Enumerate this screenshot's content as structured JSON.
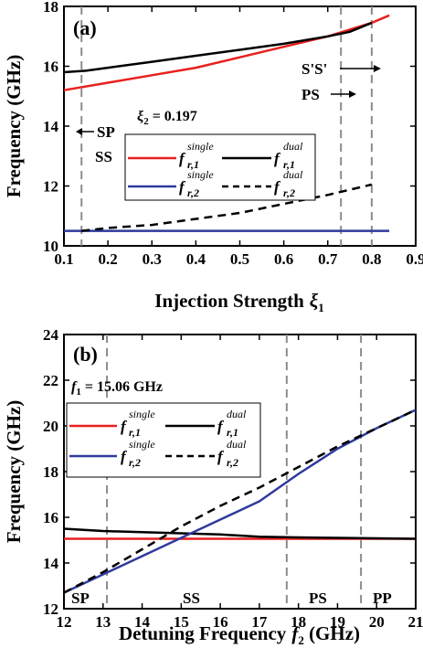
{
  "chart_data": [
    {
      "type": "line",
      "panel_label": "(a)",
      "xlabel": "Injection Strength",
      "xlabel_symbol": "ξ",
      "xlabel_sub": "1",
      "ylabel": "Frequency (GHz)",
      "xlim": [
        0.1,
        0.9
      ],
      "ylim": [
        10,
        18
      ],
      "xticks": [
        "0.1",
        "0.2",
        "0.3",
        "0.4",
        "0.5",
        "0.6",
        "0.7",
        "0.8",
        "0.9"
      ],
      "yticks": [
        "10",
        "12",
        "14",
        "16",
        "18"
      ],
      "vlines": [
        0.14,
        0.73,
        0.8
      ],
      "legend_title_symbol": "ξ",
      "legend_title_sub": "2",
      "legend_title_value": " = 0.197",
      "series": [
        {
          "name": "f_r,1^single",
          "color": "#e8201e",
          "dash": false,
          "x": [
            0.1,
            0.2,
            0.3,
            0.4,
            0.5,
            0.6,
            0.7,
            0.8,
            0.84
          ],
          "y": [
            15.2,
            15.45,
            15.7,
            15.95,
            16.3,
            16.65,
            17.0,
            17.45,
            17.7
          ]
        },
        {
          "name": "f_r,1^dual",
          "color": "#000000",
          "dash": false,
          "x": [
            0.1,
            0.15,
            0.2,
            0.3,
            0.4,
            0.5,
            0.6,
            0.7,
            0.75,
            0.8
          ],
          "y": [
            15.8,
            15.85,
            15.95,
            16.15,
            16.35,
            16.55,
            16.75,
            17.0,
            17.15,
            17.45
          ]
        },
        {
          "name": "f_r,2^single",
          "color": "#2e3a9c",
          "dash": false,
          "x": [
            0.1,
            0.84
          ],
          "y": [
            10.5,
            10.5
          ]
        },
        {
          "name": "f_r,2^dual",
          "color": "#000000",
          "dash": true,
          "x": [
            0.14,
            0.2,
            0.3,
            0.4,
            0.5,
            0.6,
            0.7,
            0.8
          ],
          "y": [
            10.5,
            10.6,
            10.7,
            10.9,
            11.1,
            11.4,
            11.7,
            12.05
          ]
        }
      ],
      "annotations": [
        {
          "text": "SP",
          "arrow": "left"
        },
        {
          "text": "SS",
          "arrow": "none"
        },
        {
          "text": "S'S'",
          "arrow": "right"
        },
        {
          "text": "PS",
          "arrow": "right"
        }
      ]
    },
    {
      "type": "line",
      "panel_label": "(b)",
      "xlabel": "Detuning Frequency",
      "xlabel_symbol": "f",
      "xlabel_sub": "2",
      "xlabel_unit": " (GHz)",
      "ylabel": "Frequency (GHz)",
      "xlim": [
        12,
        21
      ],
      "ylim": [
        12,
        24
      ],
      "xticks": [
        "12",
        "13",
        "14",
        "15",
        "16",
        "17",
        "18",
        "19",
        "20",
        "21"
      ],
      "yticks": [
        "12",
        "14",
        "16",
        "18",
        "20",
        "22",
        "24"
      ],
      "vlines": [
        13.1,
        17.7,
        19.6
      ],
      "legend_title_symbol": "f",
      "legend_title_sub": "1",
      "legend_title_value": " = 15.06 GHz",
      "series": [
        {
          "name": "f_r,1^single",
          "color": "#e8201e",
          "dash": false,
          "x": [
            12,
            21
          ],
          "y": [
            15.06,
            15.06
          ]
        },
        {
          "name": "f_r,1^dual",
          "color": "#000000",
          "dash": false,
          "x": [
            12,
            13,
            14,
            15,
            16,
            17,
            18,
            19,
            20,
            21
          ],
          "y": [
            15.5,
            15.4,
            15.35,
            15.3,
            15.25,
            15.15,
            15.12,
            15.1,
            15.08,
            15.06
          ]
        },
        {
          "name": "f_r,2^single",
          "color": "#2e3a9c",
          "dash": false,
          "x": [
            12,
            13,
            14,
            15,
            16,
            17,
            18,
            19,
            20,
            21
          ],
          "y": [
            12.7,
            13.5,
            14.3,
            15.1,
            15.9,
            16.7,
            17.9,
            19.0,
            19.9,
            20.7
          ]
        },
        {
          "name": "f_r,2^dual",
          "color": "#000000",
          "dash": true,
          "x": [
            12,
            13,
            14,
            15,
            16,
            17,
            18,
            19,
            20,
            21
          ],
          "y": [
            12.7,
            13.6,
            14.6,
            15.6,
            16.5,
            17.3,
            18.2,
            19.1,
            19.9,
            20.7
          ]
        }
      ],
      "annotations": [
        {
          "text": "SP",
          "arrow": "none"
        },
        {
          "text": "SS",
          "arrow": "none"
        },
        {
          "text": "PS",
          "arrow": "none"
        },
        {
          "text": "PP",
          "arrow": "none"
        }
      ]
    }
  ]
}
